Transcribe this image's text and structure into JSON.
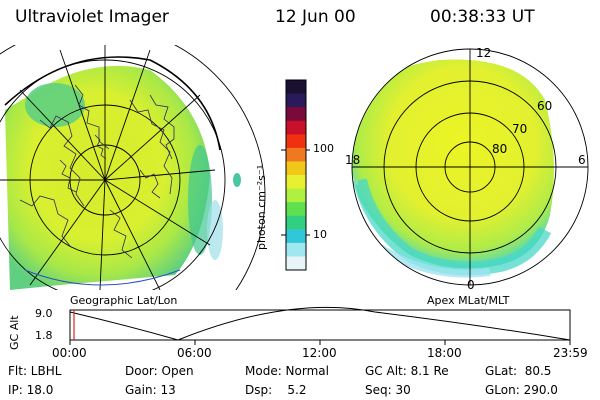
{
  "header": {
    "instrument": "Ultraviolet Imager",
    "date": "12 Jun 00",
    "time": "00:38:33 UT"
  },
  "colorbar": {
    "unit_label": "photon cm⁻²s⁻¹",
    "ticks": [
      "100",
      "10"
    ],
    "colors": [
      "#1a1030",
      "#2a1a5a",
      "#7a0a3a",
      "#c8102a",
      "#f03010",
      "#f07820",
      "#f0c818",
      "#e8f030",
      "#b0f040",
      "#60e050",
      "#30d080",
      "#30c8d8",
      "#a0e8f0",
      "#e8f4f8"
    ]
  },
  "left_map": {
    "label": "Geographic Lat/Lon"
  },
  "right_map": {
    "label": "Apex MLat/MLT",
    "mlt_labels": [
      "12",
      "18",
      "6",
      "0"
    ],
    "lat_labels": [
      "60",
      "70",
      "80"
    ]
  },
  "timeline": {
    "ylabel": "GC Alt",
    "y_ticks": [
      "9.0",
      "1.8"
    ],
    "x_ticks": [
      "00:00",
      "06:00",
      "12:00",
      "18:00",
      "23:59"
    ]
  },
  "info_rows": [
    [
      "Flt: LBHL",
      "Door: Open",
      "Mode: Normal",
      "GC Alt: 8.1 Re",
      "GLat:  80.5"
    ],
    [
      "IP: 18.0",
      "Gain: 13",
      "Dsp:    5.2",
      "Seq: 30",
      "GLon: 290.0"
    ]
  ]
}
